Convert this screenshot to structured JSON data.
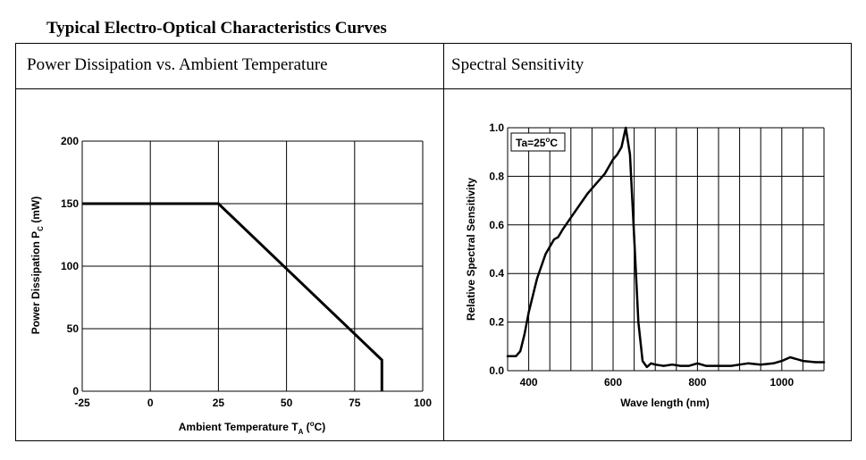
{
  "page": {
    "title": "Typical Electro-Optical Characteristics Curves"
  },
  "chart_data": [
    {
      "type": "line",
      "title": "Power Dissipation vs. Ambient Temperature",
      "xlabel_main": "Ambient Temperature T",
      "xlabel_sub": "A",
      "xlabel_unit": " (",
      "xlabel_deg": "o",
      "xlabel_end": "C)",
      "ylabel_main": "Power Dissipation P",
      "ylabel_sub": "C",
      "ylabel_unit": " (mW)",
      "xlim": [
        -25,
        100
      ],
      "ylim": [
        0,
        200
      ],
      "xticks": [
        -25,
        0,
        25,
        50,
        75,
        100
      ],
      "yticks": [
        0,
        50,
        100,
        150,
        200
      ],
      "grid": true,
      "series": [
        {
          "x": [
            -25,
            25,
            85,
            85
          ],
          "y": [
            150,
            150,
            25,
            0
          ]
        }
      ]
    },
    {
      "type": "line",
      "title": "Spectral Sensitivity",
      "xlabel": "Wave length (nm)",
      "ylabel": "Relative Spectral Sensitivity",
      "annotation_main": "Ta=25",
      "annotation_deg": "o",
      "annotation_end": "C",
      "xlim": [
        350,
        1100
      ],
      "ylim": [
        0,
        1.0
      ],
      "xticks": [
        400,
        600,
        800,
        1000
      ],
      "ytick_labels": [
        "0.0",
        "0.2",
        "0.4",
        "0.6",
        "0.8",
        "1.0"
      ],
      "yticks": [
        0,
        0.2,
        0.4,
        0.6,
        0.8,
        1.0
      ],
      "xgrid": [
        350,
        400,
        450,
        500,
        550,
        600,
        650,
        700,
        750,
        800,
        850,
        900,
        950,
        1000,
        1050,
        1100
      ],
      "grid": true,
      "series": [
        {
          "x": [
            350,
            370,
            380,
            390,
            400,
            420,
            440,
            460,
            470,
            480,
            500,
            520,
            540,
            560,
            580,
            600,
            610,
            620,
            630,
            640,
            650,
            660,
            670,
            680,
            690,
            700,
            720,
            740,
            760,
            780,
            800,
            820,
            850,
            880,
            900,
            920,
            950,
            980,
            1000,
            1020,
            1050,
            1080,
            1100
          ],
          "y": [
            0.06,
            0.06,
            0.08,
            0.15,
            0.24,
            0.38,
            0.48,
            0.54,
            0.55,
            0.58,
            0.63,
            0.68,
            0.73,
            0.77,
            0.81,
            0.87,
            0.89,
            0.92,
            1.0,
            0.89,
            0.55,
            0.2,
            0.04,
            0.015,
            0.03,
            0.025,
            0.02,
            0.025,
            0.02,
            0.02,
            0.03,
            0.02,
            0.02,
            0.02,
            0.025,
            0.03,
            0.025,
            0.03,
            0.04,
            0.055,
            0.04,
            0.035,
            0.035
          ]
        }
      ]
    }
  ]
}
